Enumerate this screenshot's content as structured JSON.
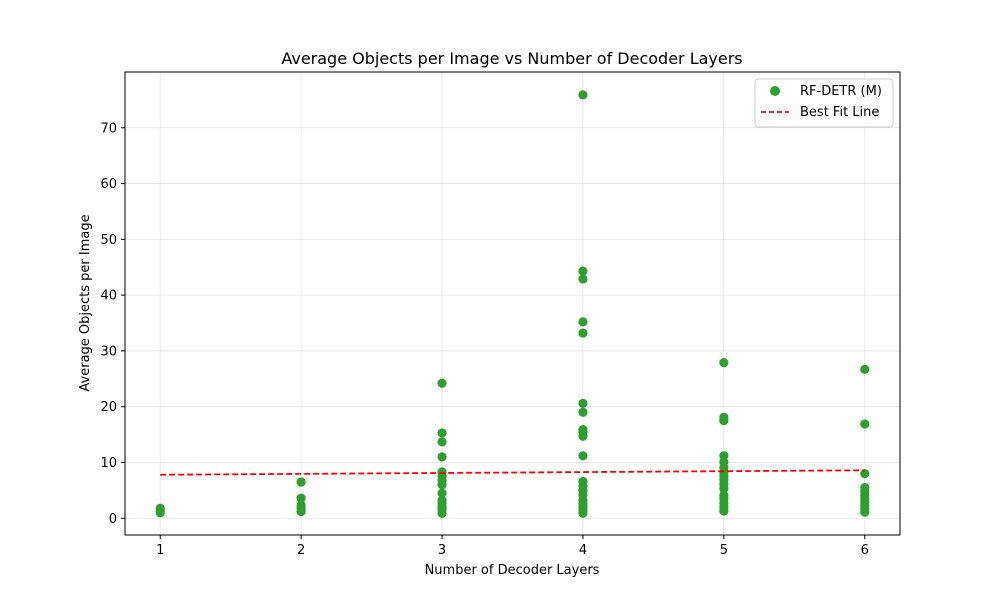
{
  "chart_data": {
    "type": "scatter",
    "title": "Average Objects per Image vs Number of Decoder Layers",
    "xlabel": "Number of Decoder Layers",
    "ylabel": "Average Objects per Image",
    "xlim": [
      0.75,
      6.25
    ],
    "ylim": [
      -3,
      80
    ],
    "xticks": [
      1,
      2,
      3,
      4,
      5,
      6
    ],
    "yticks": [
      0,
      10,
      20,
      30,
      40,
      50,
      60,
      70
    ],
    "grid": true,
    "legend_position": "top-right",
    "series": [
      {
        "name": "RF-DETR (M)",
        "kind": "scatter",
        "color": "#2ca02c",
        "points": [
          [
            1,
            1.0
          ],
          [
            1,
            1.4
          ],
          [
            1,
            1.8
          ],
          [
            2,
            1.2
          ],
          [
            2,
            1.8
          ],
          [
            2,
            2.3
          ],
          [
            2,
            3.6
          ],
          [
            2,
            6.5
          ],
          [
            3,
            0.9
          ],
          [
            3,
            1.5
          ],
          [
            3,
            2.0
          ],
          [
            3,
            2.6
          ],
          [
            3,
            3.2
          ],
          [
            3,
            4.5
          ],
          [
            3,
            6.0
          ],
          [
            3,
            6.8
          ],
          [
            3,
            7.5
          ],
          [
            3,
            8.3
          ],
          [
            3,
            11.0
          ],
          [
            3,
            13.7
          ],
          [
            3,
            15.3
          ],
          [
            3,
            24.2
          ],
          [
            4,
            0.9
          ],
          [
            4,
            1.4
          ],
          [
            4,
            2.0
          ],
          [
            4,
            2.6
          ],
          [
            4,
            3.2
          ],
          [
            4,
            4.2
          ],
          [
            4,
            5.0
          ],
          [
            4,
            5.8
          ],
          [
            4,
            6.6
          ],
          [
            4,
            11.2
          ],
          [
            4,
            14.7
          ],
          [
            4,
            15.5
          ],
          [
            4,
            15.9
          ],
          [
            4,
            19.0
          ],
          [
            4,
            20.6
          ],
          [
            4,
            33.2
          ],
          [
            4,
            35.2
          ],
          [
            4,
            42.9
          ],
          [
            4,
            44.3
          ],
          [
            4,
            75.9
          ],
          [
            5,
            1.3
          ],
          [
            5,
            2.0
          ],
          [
            5,
            2.7
          ],
          [
            5,
            3.5
          ],
          [
            5,
            4.1
          ],
          [
            5,
            5.3
          ],
          [
            5,
            6.1
          ],
          [
            5,
            6.9
          ],
          [
            5,
            7.6
          ],
          [
            5,
            8.3
          ],
          [
            5,
            9.1
          ],
          [
            5,
            10.1
          ],
          [
            5,
            11.2
          ],
          [
            5,
            17.5
          ],
          [
            5,
            18.1
          ],
          [
            5,
            27.9
          ],
          [
            6,
            1.1
          ],
          [
            6,
            1.7
          ],
          [
            6,
            2.3
          ],
          [
            6,
            2.9
          ],
          [
            6,
            3.5
          ],
          [
            6,
            4.1
          ],
          [
            6,
            4.8
          ],
          [
            6,
            5.5
          ],
          [
            6,
            8.0
          ],
          [
            6,
            16.9
          ],
          [
            6,
            26.7
          ]
        ]
      },
      {
        "name": "Best Fit Line",
        "kind": "line",
        "style": "dashed",
        "color": "#ff0000",
        "points": [
          [
            1,
            7.8
          ],
          [
            6,
            8.6
          ]
        ]
      }
    ]
  }
}
